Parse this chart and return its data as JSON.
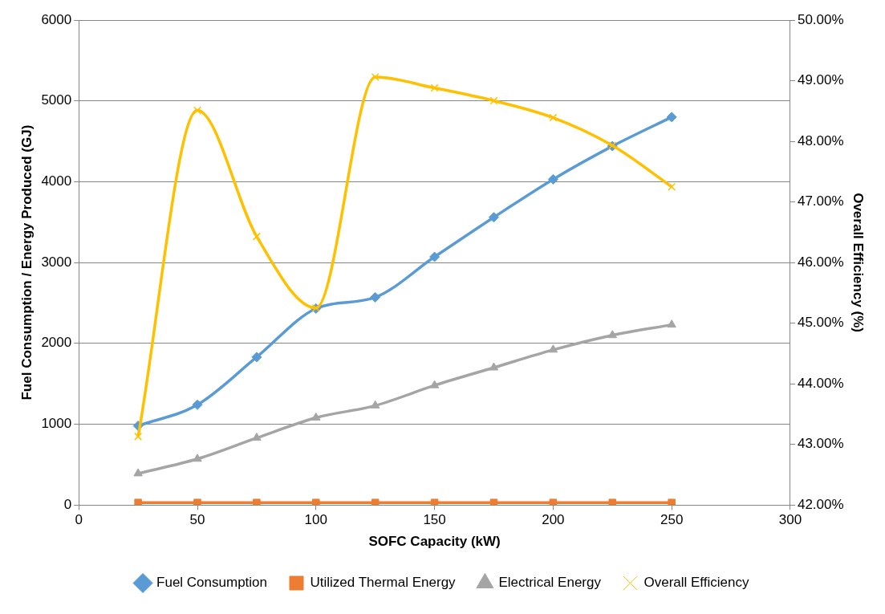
{
  "chart_data": {
    "type": "line",
    "xlabel": "SOFC Capacity (kW)",
    "ylabel": "Fuel Consumption / Energy Produced (GJ)",
    "y2label": "Overall Efficiency (%)",
    "x": [
      25,
      50,
      75,
      100,
      125,
      150,
      175,
      200,
      225,
      250
    ],
    "xlim": [
      0,
      300
    ],
    "xticks": [
      0,
      50,
      100,
      150,
      200,
      250,
      300
    ],
    "ylim": [
      0,
      6000
    ],
    "yticks": [
      0,
      1000,
      2000,
      3000,
      4000,
      5000,
      6000
    ],
    "y2lim": [
      42,
      50
    ],
    "y2ticks": [
      {
        "value": 42,
        "label": "42.00%"
      },
      {
        "value": 43,
        "label": "43.00%"
      },
      {
        "value": 44,
        "label": "44.00%"
      },
      {
        "value": 45,
        "label": "45.00%"
      },
      {
        "value": 46,
        "label": "46.00%"
      },
      {
        "value": 47,
        "label": "47.00%"
      },
      {
        "value": 48,
        "label": "48.00%"
      },
      {
        "value": 49,
        "label": "49.00%"
      },
      {
        "value": 50,
        "label": "50.00%"
      }
    ],
    "grid": "y",
    "legend": "bottom",
    "series": [
      {
        "name": "Fuel Consumption",
        "color": "#5b9bd5",
        "marker": "diamond",
        "values": [
          980,
          1240,
          1830,
          2430,
          2570,
          3070,
          3560,
          4030,
          4440,
          4800
        ]
      },
      {
        "name": "Utilized Thermal Energy",
        "color": "#ed7d31",
        "marker": "square",
        "values": [
          30,
          30,
          30,
          30,
          30,
          30,
          30,
          30,
          30,
          30
        ]
      },
      {
        "name": "Electrical Energy",
        "color": "#a5a5a5",
        "marker": "triangle",
        "values": [
          390,
          570,
          830,
          1080,
          1230,
          1480,
          1700,
          1920,
          2100,
          2230
        ]
      },
      {
        "name": "Overall Efficiency",
        "color": "#ffc000",
        "marker": "cross",
        "axis": "y2",
        "values": [
          43.13,
          48.51,
          46.43,
          45.25,
          49.06,
          48.88,
          48.67,
          48.39,
          47.93,
          47.25
        ]
      }
    ]
  }
}
